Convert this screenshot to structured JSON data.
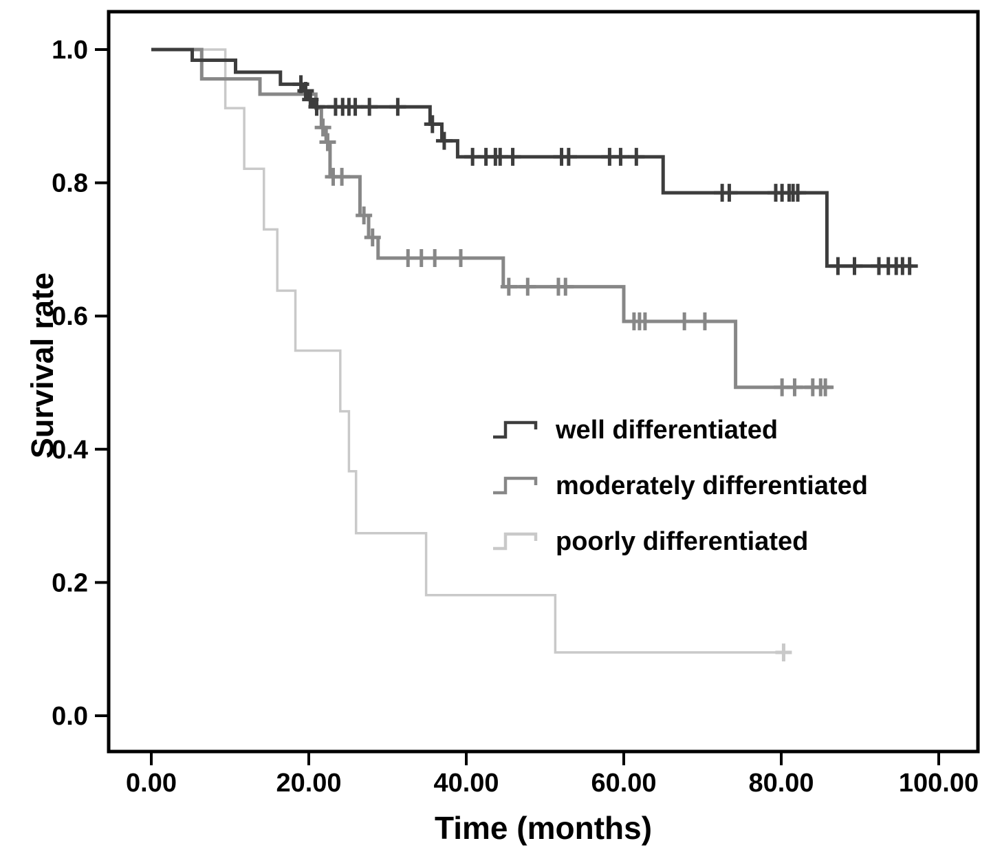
{
  "figure": {
    "background": "#ffffff"
  },
  "axes": {
    "x_title": "Time (months)",
    "y_title": "Survival rate"
  },
  "legend": {
    "items": [
      {
        "label": "well differentiated",
        "color": "#3d3d3d"
      },
      {
        "label": "moderately differentiated",
        "color": "#878787"
      },
      {
        "label": "poorly differentiated",
        "color": "#c9c9c9"
      }
    ]
  },
  "chart_data": {
    "type": "line",
    "subtype": "kaplan_meier_step",
    "title": "",
    "xlabel": "Time (months)",
    "ylabel": "Survival rate",
    "xlim": [
      0,
      100
    ],
    "ylim": [
      0.0,
      1.0
    ],
    "grid": false,
    "legend_position": "inside-center-right",
    "x_ticks": {
      "values": [
        0,
        20,
        40,
        60,
        80,
        100
      ],
      "labels": [
        "0.00",
        "20.00",
        "40.00",
        "60.00",
        "80.00",
        "100.00"
      ]
    },
    "y_ticks": {
      "values": [
        0.0,
        0.2,
        0.4,
        0.6,
        0.8,
        1.0
      ],
      "labels": [
        "0.0",
        "0.2",
        "0.4",
        "0.6",
        "0.8",
        "1.0"
      ]
    },
    "series": [
      {
        "name": "poorly differentiated",
        "color": "#c9c9c9",
        "line_width": 3.5,
        "steps": [
          [
            0,
            1.0
          ],
          [
            9.4,
            0.912
          ],
          [
            11.8,
            0.821
          ],
          [
            14.3,
            0.73
          ],
          [
            16.0,
            0.638
          ],
          [
            18.3,
            0.548
          ],
          [
            24.0,
            0.457
          ],
          [
            25.1,
            0.367
          ],
          [
            26.0,
            0.274
          ],
          [
            34.9,
            0.181
          ],
          [
            51.3,
            0.095
          ]
        ],
        "end_t": 81.2,
        "censors": [
          [
            80.3,
            0.095
          ]
        ]
      },
      {
        "name": "moderately differentiated",
        "color": "#878787",
        "line_width": 5,
        "steps": [
          [
            0,
            1.0
          ],
          [
            6.4,
            0.956
          ],
          [
            13.8,
            0.933
          ],
          [
            20.9,
            0.912
          ],
          [
            21.6,
            0.883
          ],
          [
            22.2,
            0.861
          ],
          [
            22.7,
            0.809
          ],
          [
            26.5,
            0.751
          ],
          [
            27.6,
            0.718
          ],
          [
            28.8,
            0.687
          ],
          [
            44.7,
            0.644
          ],
          [
            60.0,
            0.592
          ],
          [
            74.2,
            0.493
          ]
        ],
        "end_t": 86.5,
        "censors": [
          [
            21.8,
            0.883
          ],
          [
            22.4,
            0.861
          ],
          [
            23.1,
            0.809
          ],
          [
            24.2,
            0.809
          ],
          [
            27.0,
            0.751
          ],
          [
            28.1,
            0.718
          ],
          [
            32.6,
            0.687
          ],
          [
            34.3,
            0.687
          ],
          [
            36.0,
            0.687
          ],
          [
            39.3,
            0.687
          ],
          [
            45.4,
            0.644
          ],
          [
            47.8,
            0.644
          ],
          [
            51.7,
            0.644
          ],
          [
            52.6,
            0.644
          ],
          [
            61.3,
            0.592
          ],
          [
            62.0,
            0.592
          ],
          [
            62.7,
            0.592
          ],
          [
            67.7,
            0.592
          ],
          [
            70.3,
            0.592
          ],
          [
            80.1,
            0.493
          ],
          [
            81.7,
            0.493
          ],
          [
            84.0,
            0.493
          ],
          [
            85.0,
            0.493
          ],
          [
            85.6,
            0.493
          ]
        ]
      },
      {
        "name": "well differentiated",
        "color": "#3d3d3d",
        "line_width": 5,
        "steps": [
          [
            0,
            1.0
          ],
          [
            5.2,
            0.984
          ],
          [
            10.7,
            0.966
          ],
          [
            16.4,
            0.948
          ],
          [
            19.4,
            0.938
          ],
          [
            20.0,
            0.925
          ],
          [
            20.6,
            0.914
          ],
          [
            35.4,
            0.888
          ],
          [
            36.9,
            0.863
          ],
          [
            38.9,
            0.839
          ],
          [
            65.0,
            0.785
          ],
          [
            85.8,
            0.675
          ]
        ],
        "end_t": 96.7,
        "censors": [
          [
            19.0,
            0.948
          ],
          [
            19.6,
            0.938
          ],
          [
            20.2,
            0.925
          ],
          [
            21.0,
            0.914
          ],
          [
            23.4,
            0.914
          ],
          [
            24.3,
            0.914
          ],
          [
            25.1,
            0.914
          ],
          [
            25.9,
            0.914
          ],
          [
            27.7,
            0.914
          ],
          [
            31.3,
            0.914
          ],
          [
            35.7,
            0.888
          ],
          [
            37.2,
            0.863
          ],
          [
            40.8,
            0.839
          ],
          [
            42.5,
            0.839
          ],
          [
            43.7,
            0.839
          ],
          [
            44.3,
            0.839
          ],
          [
            45.9,
            0.839
          ],
          [
            52.1,
            0.839
          ],
          [
            53.0,
            0.839
          ],
          [
            58.2,
            0.839
          ],
          [
            59.6,
            0.839
          ],
          [
            61.6,
            0.839
          ],
          [
            72.5,
            0.785
          ],
          [
            73.4,
            0.785
          ],
          [
            79.3,
            0.785
          ],
          [
            80.1,
            0.785
          ],
          [
            81.0,
            0.785
          ],
          [
            81.5,
            0.785
          ],
          [
            82.1,
            0.785
          ],
          [
            87.2,
            0.675
          ],
          [
            89.3,
            0.675
          ],
          [
            92.4,
            0.675
          ],
          [
            93.6,
            0.675
          ],
          [
            94.6,
            0.675
          ],
          [
            95.4,
            0.675
          ],
          [
            96.3,
            0.675
          ]
        ]
      }
    ]
  }
}
